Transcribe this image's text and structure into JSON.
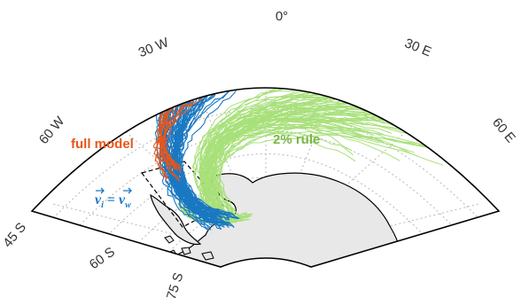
{
  "map": {
    "projection": "polar sector, south pole",
    "lon_tick_labels": [
      "0°",
      "30 W",
      "60 W",
      "30 E",
      "60 E"
    ],
    "lat_tick_labels": [
      "45 S",
      "60 S",
      "75 S"
    ],
    "land_color": "#e8e8e8",
    "grid_color": "#b0b0b0"
  },
  "annotations": {
    "full_model": {
      "text": "full model",
      "color": "#e8561a"
    },
    "two_percent_rule": {
      "text": "2% rule",
      "color": "#7ab648"
    },
    "velocity_rule": {
      "lhs_base": "v",
      "lhs_sub": "i",
      "equals": " = ",
      "rhs_base": "v",
      "rhs_sub": "w",
      "color": "#1a78c2"
    }
  },
  "tracks": [
    {
      "name": "full model",
      "color": "#e8561a"
    },
    {
      "name": "2% rule",
      "color": "#a8e07a"
    },
    {
      "name": "v_i = v_w",
      "color": "#1a78c2"
    }
  ]
}
